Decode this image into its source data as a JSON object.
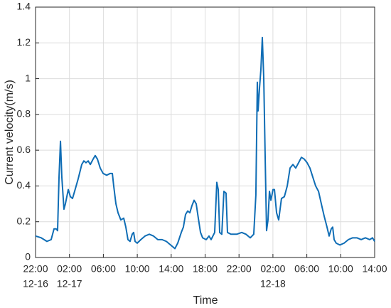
{
  "chart_data": {
    "type": "line",
    "xlabel": "Time",
    "ylabel": "Current velocity(m/s)",
    "xlim": [
      0,
      40
    ],
    "ylim": [
      0,
      1.4
    ],
    "xticks": [
      {
        "value": 0,
        "label": "22:00"
      },
      {
        "value": 4,
        "label": "02:00"
      },
      {
        "value": 8,
        "label": "06:00"
      },
      {
        "value": 12,
        "label": "10:00"
      },
      {
        "value": 16,
        "label": "14:00"
      },
      {
        "value": 20,
        "label": "18:00"
      },
      {
        "value": 24,
        "label": "22:00"
      },
      {
        "value": 28,
        "label": "02:00"
      },
      {
        "value": 32,
        "label": "06:00"
      },
      {
        "value": 36,
        "label": "10:00"
      },
      {
        "value": 40,
        "label": "14:00"
      }
    ],
    "xtick_dates": [
      {
        "value": 0,
        "label": "12-16"
      },
      {
        "value": 4,
        "label": "12-17"
      },
      {
        "value": 28,
        "label": "12-18"
      }
    ],
    "yticks": [
      0,
      0.2,
      0.4,
      0.6,
      0.8,
      1,
      1.2,
      1.4
    ],
    "grid": true,
    "series": [
      {
        "color": "#0f6db5",
        "x": [
          0,
          0.67,
          1.01,
          1.34,
          1.84,
          2.18,
          2.43,
          2.6,
          2.77,
          2.94,
          3.1,
          3.35,
          3.52,
          3.86,
          4.11,
          4.36,
          4.61,
          5.03,
          5.45,
          5.7,
          5.95,
          6.21,
          6.46,
          6.79,
          7.04,
          7.3,
          7.63,
          7.97,
          8.39,
          8.81,
          9.06,
          9.22,
          9.48,
          9.73,
          10.06,
          10.4,
          10.65,
          10.9,
          11.15,
          11.4,
          11.57,
          11.74,
          11.99,
          12.42,
          12.91,
          13.42,
          13.92,
          14.42,
          14.93,
          15.43,
          15.93,
          16.44,
          16.77,
          17.19,
          17.44,
          17.69,
          17.95,
          18.2,
          18.45,
          18.7,
          18.95,
          19.2,
          19.46,
          19.71,
          20.13,
          20.46,
          20.71,
          21.13,
          21.38,
          21.55,
          21.72,
          21.97,
          22.22,
          22.47,
          22.64,
          23.06,
          23.73,
          24.32,
          24.82,
          25.33,
          25.74,
          25.99,
          26.16,
          26.25,
          26.42,
          26.58,
          26.75,
          26.92,
          27.09,
          27.25,
          27.42,
          27.59,
          27.76,
          28.01,
          28.18,
          28.43,
          28.68,
          29.01,
          29.35,
          29.69,
          30.02,
          30.36,
          30.69,
          31.03,
          31.36,
          31.7,
          32.03,
          32.37,
          32.7,
          33.04,
          33.38,
          33.71,
          34.05,
          34.38,
          34.63,
          34.88,
          35.05,
          35.22,
          35.47,
          35.89,
          36.39,
          36.9,
          37.4,
          37.9,
          38.41,
          38.91,
          39.41,
          39.75,
          40
        ],
        "values": [
          0.12,
          0.11,
          0.1,
          0.09,
          0.1,
          0.16,
          0.16,
          0.15,
          0.45,
          0.65,
          0.45,
          0.27,
          0.3,
          0.38,
          0.34,
          0.33,
          0.37,
          0.44,
          0.52,
          0.54,
          0.53,
          0.54,
          0.52,
          0.55,
          0.57,
          0.55,
          0.5,
          0.47,
          0.46,
          0.47,
          0.47,
          0.4,
          0.3,
          0.25,
          0.21,
          0.22,
          0.17,
          0.1,
          0.09,
          0.13,
          0.14,
          0.09,
          0.08,
          0.1,
          0.12,
          0.13,
          0.12,
          0.1,
          0.1,
          0.09,
          0.07,
          0.05,
          0.08,
          0.14,
          0.17,
          0.24,
          0.26,
          0.25,
          0.29,
          0.32,
          0.3,
          0.22,
          0.14,
          0.11,
          0.1,
          0.12,
          0.1,
          0.14,
          0.42,
          0.38,
          0.14,
          0.13,
          0.37,
          0.36,
          0.14,
          0.13,
          0.13,
          0.14,
          0.13,
          0.11,
          0.13,
          0.35,
          0.98,
          0.82,
          0.95,
          1.05,
          1.23,
          1.0,
          0.55,
          0.15,
          0.21,
          0.37,
          0.32,
          0.38,
          0.38,
          0.25,
          0.21,
          0.33,
          0.34,
          0.4,
          0.5,
          0.52,
          0.5,
          0.53,
          0.56,
          0.55,
          0.53,
          0.5,
          0.45,
          0.4,
          0.37,
          0.3,
          0.23,
          0.17,
          0.12,
          0.16,
          0.17,
          0.1,
          0.08,
          0.07,
          0.08,
          0.1,
          0.11,
          0.11,
          0.1,
          0.11,
          0.1,
          0.11,
          0.09
        ]
      }
    ]
  }
}
